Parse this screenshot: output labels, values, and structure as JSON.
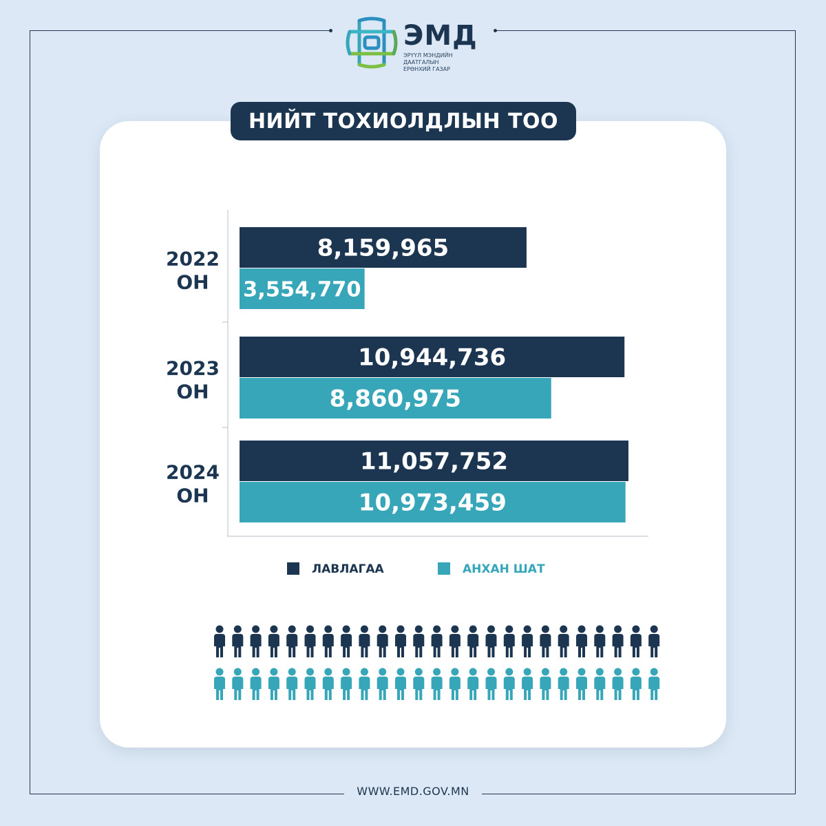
{
  "brand": {
    "name": "ЭМД",
    "subtitle_line1": "ЭРҮҮЛ МЭНДИЙН ДААТГАЛЫН",
    "subtitle_line2": "ЕРӨНХИЙ ГАЗАР",
    "colors": {
      "dark": "#1c3550",
      "teal": "#36a6b8",
      "green": "#7bc043"
    }
  },
  "title": "НИЙТ ТОХИОЛДЛЫН ТОО",
  "footer_url": "WWW.EMD.GOV.MN",
  "legend": [
    {
      "label": "ЛАВЛАГАА",
      "color": "#1c3550"
    },
    {
      "label": "АНХАН ШАТ",
      "color": "#36a6b8"
    }
  ],
  "chart_data": {
    "type": "bar",
    "orientation": "horizontal",
    "categories": [
      {
        "line1": "2022",
        "line2": "ОН"
      },
      {
        "line1": "2023",
        "line2": "ОН"
      },
      {
        "line1": "2024",
        "line2": "ОН"
      }
    ],
    "series": [
      {
        "name": "ЛАВЛАГАА",
        "color": "#1c3550",
        "values": [
          8159965,
          10944736,
          11057752
        ],
        "labels": [
          "8,159,965",
          "10,944,736",
          "11,057,752"
        ]
      },
      {
        "name": "АНХАН ШАТ",
        "color": "#36a6b8",
        "values": [
          3554770,
          8860975,
          10973459
        ],
        "labels": [
          "3,554,770",
          "8,860,975",
          "10,973,459"
        ]
      }
    ],
    "legend_position": "bottom",
    "grid": false
  },
  "pictogram": {
    "rows": [
      {
        "series": "ЛАВЛАГАА",
        "count": 25,
        "color": "#1c3550"
      },
      {
        "series": "АНХАН ШАТ",
        "count": 25,
        "color": "#36a6b8"
      }
    ]
  }
}
